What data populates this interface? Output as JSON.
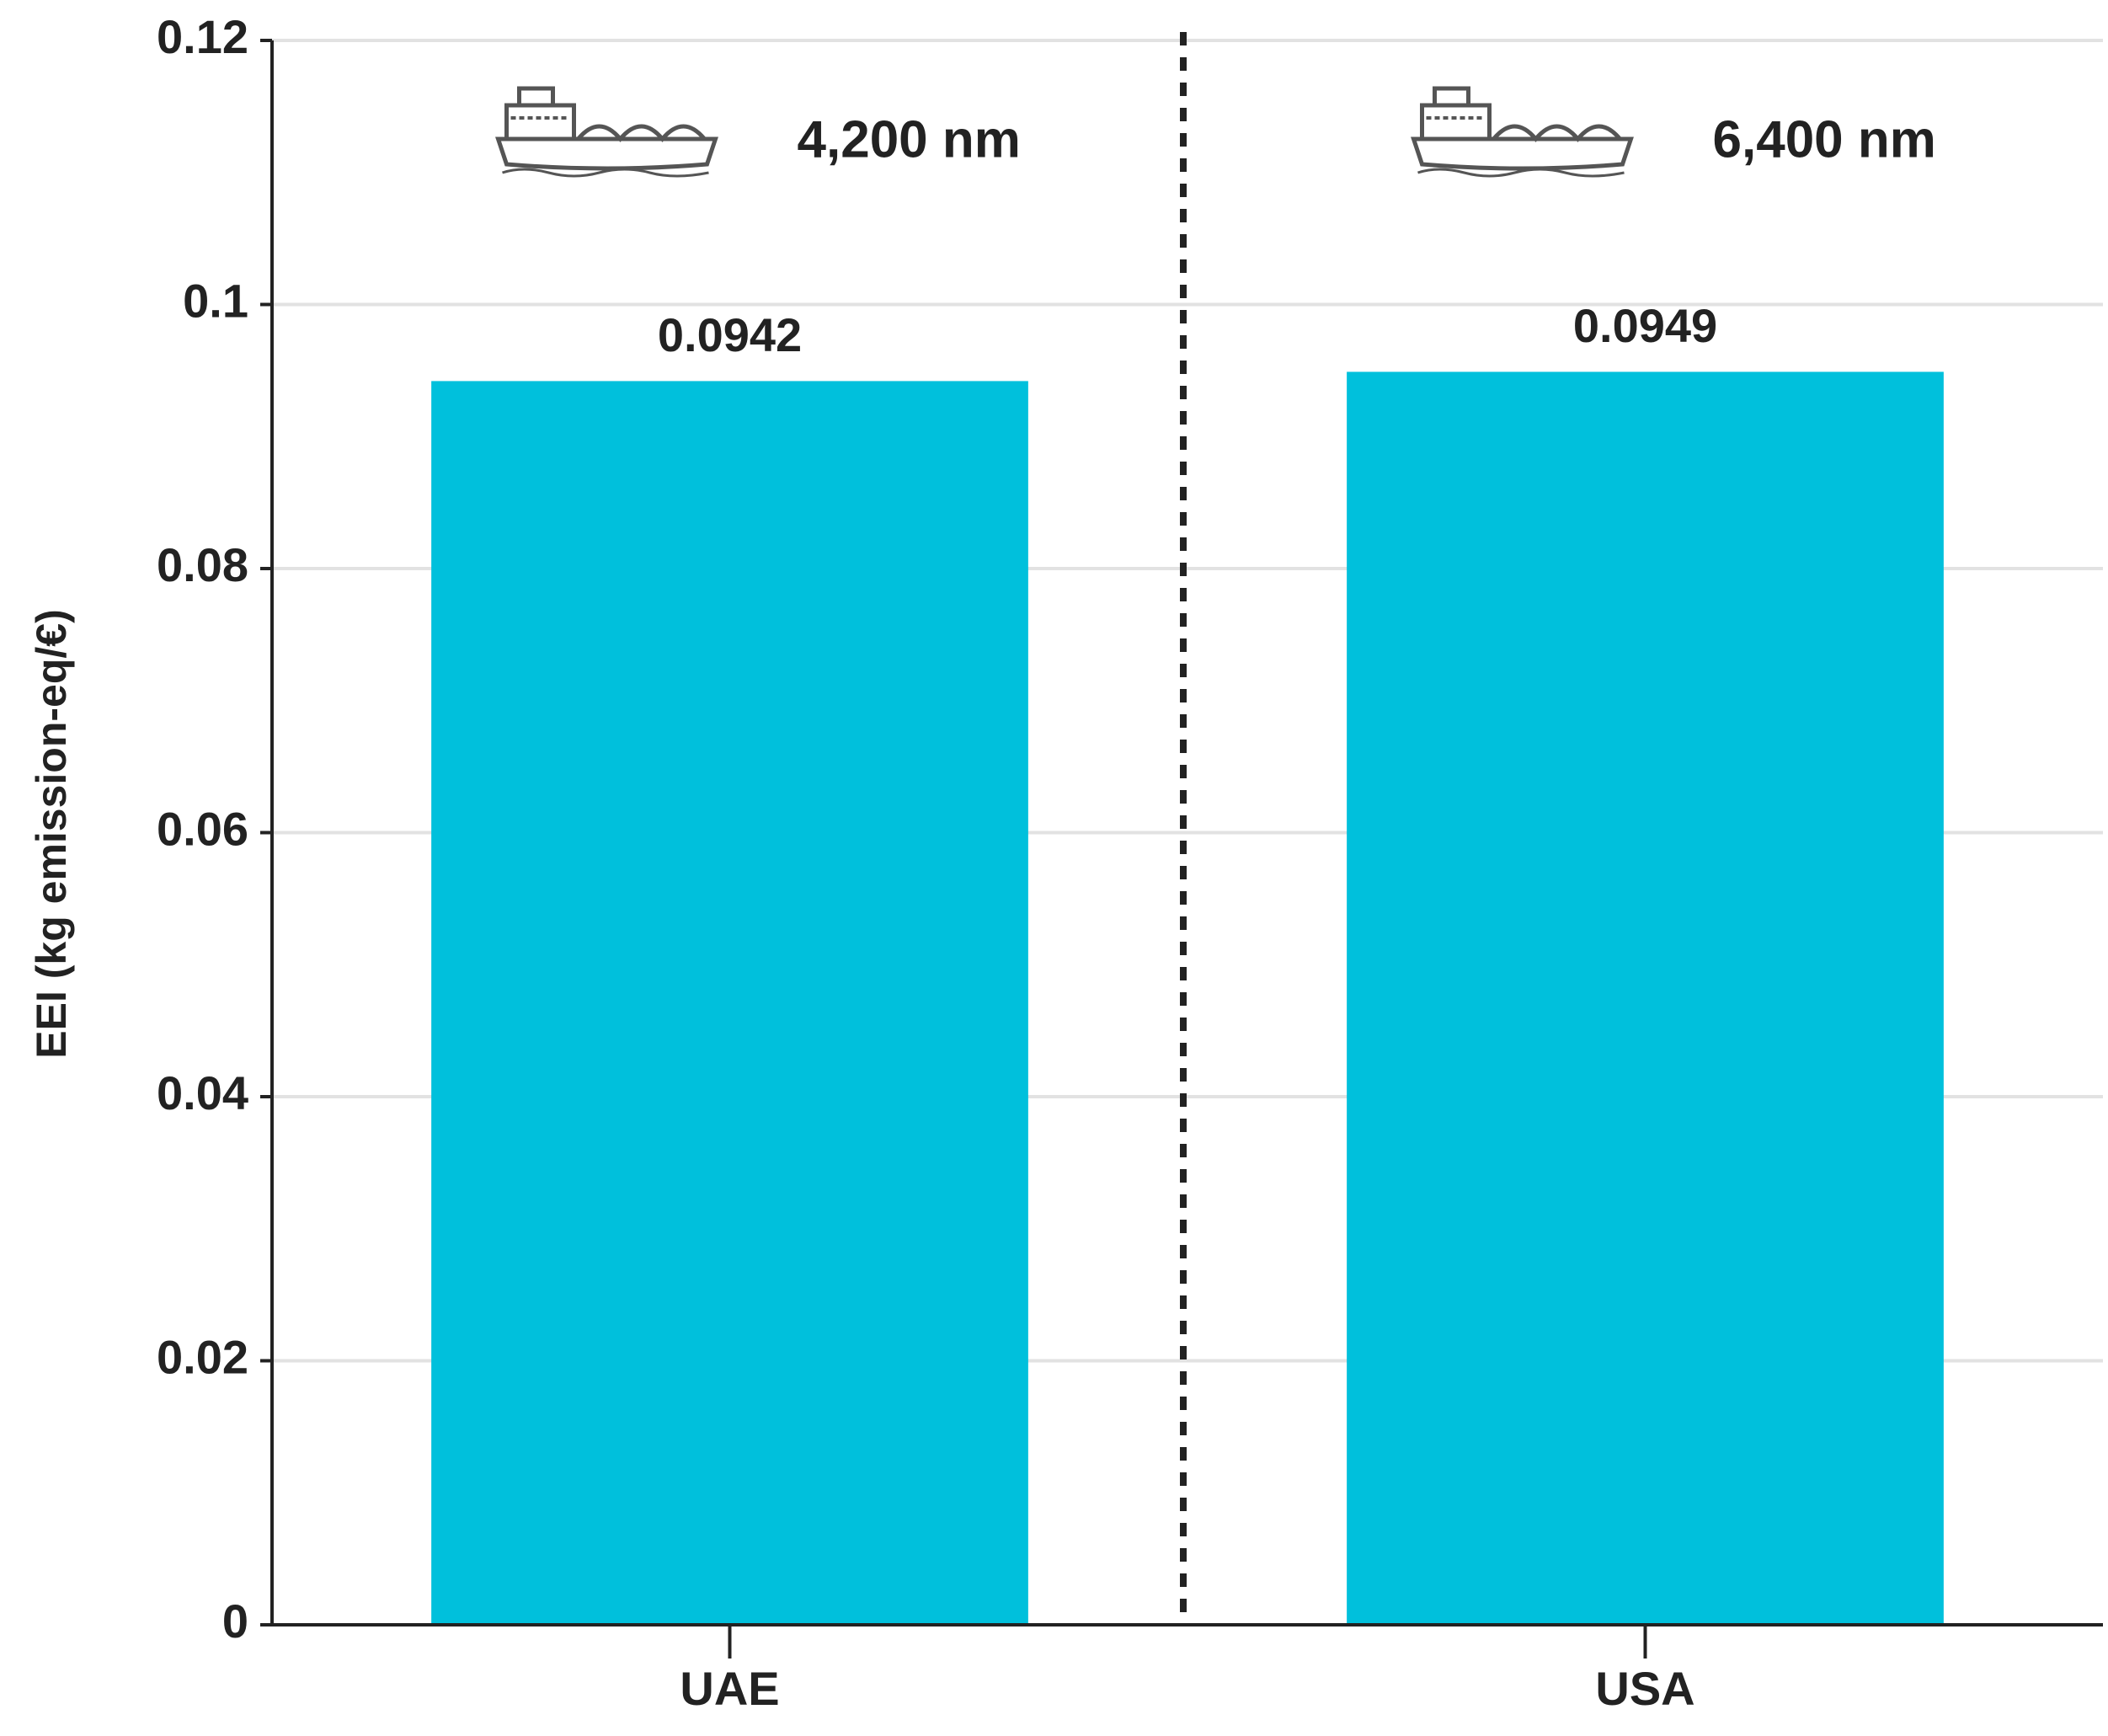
{
  "chart_data": {
    "type": "bar",
    "y_label": "EEI (kg emission-eq/€)",
    "categories": [
      "UAE",
      "USA"
    ],
    "values": [
      0.0942,
      0.0949
    ],
    "color": "#00c0dc",
    "annotations": [
      "4,200 nm",
      "6,400 nm"
    ],
    "ylim": [
      0,
      0.12
    ],
    "yticks": [
      0,
      0.02,
      0.04,
      0.06,
      0.08,
      0.1,
      0.12
    ],
    "grid": true
  }
}
